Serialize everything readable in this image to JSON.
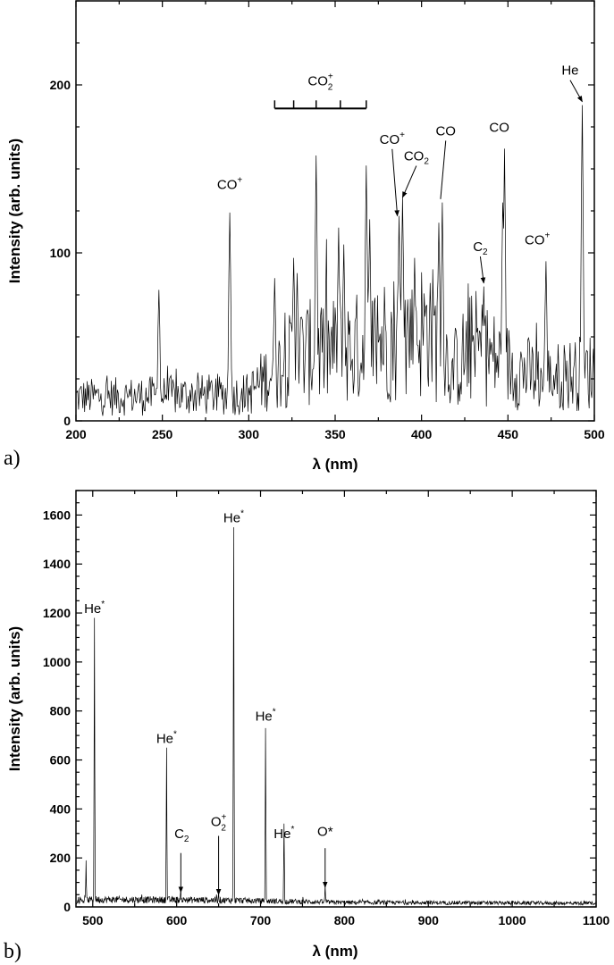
{
  "chart_data": [
    {
      "type": "line",
      "panel_label": "a)",
      "xlabel": "λ (nm)",
      "ylabel": "Intensity (arb. units)",
      "xlim": [
        200,
        500
      ],
      "ylim": [
        0,
        250
      ],
      "xticks": [
        200,
        250,
        300,
        350,
        400,
        450,
        500
      ],
      "yticks": [
        0,
        100,
        200
      ],
      "grid": false,
      "line_color": "#000000",
      "continuum": [
        [
          200,
          14
        ],
        [
          300,
          16
        ],
        [
          312,
          28
        ],
        [
          330,
          40
        ],
        [
          360,
          42
        ],
        [
          380,
          50
        ],
        [
          405,
          55
        ],
        [
          418,
          30
        ],
        [
          430,
          45
        ],
        [
          445,
          35
        ],
        [
          470,
          25
        ],
        [
          500,
          30
        ]
      ],
      "peaks": [
        [
          248,
          78
        ],
        [
          289,
          124
        ],
        [
          315,
          85
        ],
        [
          326,
          97
        ],
        [
          328,
          88
        ],
        [
          339,
          158
        ],
        [
          352,
          115
        ],
        [
          355,
          105
        ],
        [
          368,
          152
        ],
        [
          370,
          120
        ],
        [
          387,
          122
        ],
        [
          389,
          133
        ],
        [
          396,
          97
        ],
        [
          405,
          82
        ],
        [
          410,
          118
        ],
        [
          412,
          130
        ],
        [
          436,
          80
        ],
        [
          447,
          130
        ],
        [
          448,
          162
        ],
        [
          472,
          95
        ],
        [
          493,
          188
        ]
      ],
      "bracket": {
        "label": {
          "base": "CO",
          "sub": "2",
          "sup": "+"
        },
        "x": [
          315,
          326,
          339,
          353,
          368
        ],
        "y": 186
      },
      "annotations": [
        {
          "text": {
            "base": "CO",
            "sup": "+"
          },
          "x": 289,
          "y": 138
        },
        {
          "text": {
            "base": "CO",
            "sup": "+"
          },
          "x": 383,
          "y": 165,
          "arrow_to": [
            386,
            122
          ]
        },
        {
          "text": {
            "base": "CO",
            "sub": "2"
          },
          "x": 397,
          "y": 155,
          "arrow_to": [
            389,
            133
          ]
        },
        {
          "text": {
            "base": "CO"
          },
          "x": 414,
          "y": 170,
          "line_to": [
            411,
            132
          ]
        },
        {
          "text": {
            "base": "CO"
          },
          "x": 445,
          "y": 172
        },
        {
          "text": {
            "base": "C",
            "sub": "2"
          },
          "x": 434,
          "y": 101,
          "arrow_to": [
            436,
            82
          ]
        },
        {
          "text": {
            "base": "CO",
            "sup": "+"
          },
          "x": 467,
          "y": 105
        },
        {
          "text": {
            "base": "He"
          },
          "x": 486,
          "y": 206,
          "arrow_to": [
            493,
            190
          ]
        }
      ]
    },
    {
      "type": "line",
      "panel_label": "b)",
      "xlabel": "λ (nm)",
      "ylabel": "Intensity (arb. units)",
      "xlim": [
        480,
        1100
      ],
      "ylim": [
        0,
        1700
      ],
      "xticks": [
        500,
        600,
        700,
        800,
        900,
        1000,
        1100
      ],
      "yticks": [
        0,
        200,
        400,
        600,
        800,
        1000,
        1200,
        1400,
        1600
      ],
      "grid": false,
      "line_color": "#000000",
      "continuum": [
        [
          480,
          22
        ],
        [
          500,
          30
        ],
        [
          650,
          28
        ],
        [
          800,
          18
        ],
        [
          1100,
          15
        ]
      ],
      "peaks": [
        [
          492,
          190
        ],
        [
          502,
          1180
        ],
        [
          588,
          650
        ],
        [
          605,
          70
        ],
        [
          650,
          60
        ],
        [
          668,
          1550
        ],
        [
          706,
          730
        ],
        [
          728,
          340
        ],
        [
          777,
          90
        ]
      ],
      "annotations": [
        {
          "text": {
            "base": "He",
            "sup": "*"
          },
          "x": 502,
          "y": 1200
        },
        {
          "text": {
            "base": "He",
            "sup": "*"
          },
          "x": 668,
          "y": 1570
        },
        {
          "text": {
            "base": "He",
            "sup": "*"
          },
          "x": 588,
          "y": 670
        },
        {
          "text": {
            "base": "He",
            "sup": "*"
          },
          "x": 706,
          "y": 760
        },
        {
          "text": {
            "base": "He",
            "sup": "*"
          },
          "x": 728,
          "y": 280
        },
        {
          "text": {
            "base": "C",
            "sub": "2"
          },
          "x": 606,
          "y": 280,
          "arrow_to": [
            605,
            60
          ],
          "arrow_from": [
            605,
            220
          ]
        },
        {
          "text": {
            "base": "O",
            "sub": "2",
            "sup": "+"
          },
          "x": 650,
          "y": 330,
          "arrow_to": [
            650,
            50
          ],
          "arrow_from": [
            650,
            290
          ]
        },
        {
          "text": {
            "base": "O*"
          },
          "x": 777,
          "y": 290,
          "arrow_to": [
            777,
            80
          ],
          "arrow_from": [
            777,
            240
          ]
        }
      ]
    }
  ]
}
